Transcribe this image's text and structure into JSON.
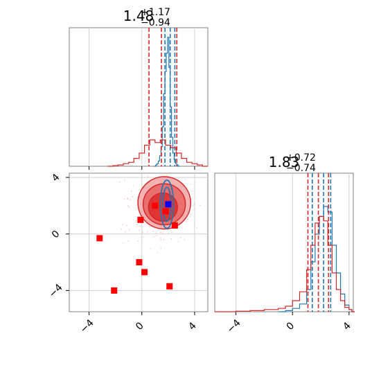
{
  "colors": {
    "red": "#d62728",
    "blue": "#1f77b4",
    "marker_red": "#ff0000",
    "marker_blue": "#0000ff",
    "grid": "#d0d0d0",
    "frame": "#808080"
  },
  "chart_data": [
    {
      "type": "histogram",
      "panel": "param1-marginal",
      "title": {
        "median": "1.48",
        "upper": "+1.17",
        "lower": "−0.94"
      },
      "xlim": [
        -5.5,
        5
      ],
      "grid": true,
      "xticks": [
        -4,
        0,
        4
      ],
      "series": [
        {
          "color": "#1f77b4",
          "bins_x": [
            1.0,
            1.1,
            1.2,
            1.3,
            1.4,
            1.5,
            1.6,
            1.7,
            1.8,
            1.9,
            2.0,
            2.1,
            2.2,
            2.3,
            2.4,
            2.5,
            2.6,
            2.7,
            2.8
          ],
          "heights": [
            0,
            0.01,
            0.02,
            0.04,
            0.08,
            0.15,
            0.3,
            0.55,
            0.72,
            0.86,
            0.98,
            0.75,
            0.45,
            0.22,
            0.1,
            0.05,
            0.02,
            0.01,
            0
          ],
          "quantile_lines": [
            1.75,
            2.15,
            2.5
          ]
        },
        {
          "color": "#d62728",
          "bins_x": [
            -2.4,
            -2.0,
            -1.6,
            -1.2,
            -0.8,
            -0.4,
            0,
            0.4,
            0.8,
            1.2,
            1.6,
            2.0,
            2.4,
            2.8,
            3.2,
            3.6,
            4.0,
            4.4,
            4.8
          ],
          "heights": [
            0,
            0.005,
            0.01,
            0.02,
            0.03,
            0.06,
            0.1,
            0.16,
            0.2,
            0.18,
            0.2,
            0.16,
            0.14,
            0.1,
            0.06,
            0.03,
            0.02,
            0.01,
            0
          ],
          "quantile_lines": [
            0.54,
            1.48,
            2.65
          ]
        }
      ]
    },
    {
      "type": "scatter",
      "panel": "param1-vs-param2",
      "xlim": [
        -5.5,
        5
      ],
      "ylim": [
        -5.5,
        4.3
      ],
      "xticks": [
        -4,
        0,
        4
      ],
      "yticks": [
        -4,
        0,
        4
      ],
      "grid": true,
      "red_square_points": [
        [
          -3.2,
          -0.3
        ],
        [
          -2.1,
          -4.0
        ],
        [
          -0.2,
          -2.0
        ],
        [
          0.2,
          -2.7
        ],
        [
          2.1,
          -3.7
        ],
        [
          1.0,
          2.0
        ],
        [
          -0.1,
          1.0
        ],
        [
          1.8,
          1.6
        ],
        [
          2.5,
          0.6
        ]
      ],
      "blue_square_points": [
        [
          2.0,
          2.1
        ]
      ],
      "red_contours": [
        {
          "cx": 1.7,
          "cy": 2.2,
          "rx": 2.0,
          "ry": 1.85,
          "level": "outer"
        },
        {
          "cx": 1.7,
          "cy": 2.1,
          "rx": 1.6,
          "ry": 1.45,
          "level": "middle"
        },
        {
          "cx": 1.6,
          "cy": 1.9,
          "rx": 1.1,
          "ry": 1.0,
          "level": "inner"
        }
      ],
      "blue_contours": [
        {
          "cx": 1.9,
          "cy": 2.1,
          "rx": 0.5,
          "ry": 1.7
        },
        {
          "cx": 1.9,
          "cy": 2.1,
          "rx": 0.3,
          "ry": 1.2
        }
      ]
    },
    {
      "type": "histogram",
      "panel": "param2-marginal",
      "title": {
        "median": "1.83",
        "upper": "+0.72",
        "lower": "−0.74"
      },
      "xlim": [
        -5.5,
        4.3
      ],
      "xticks": [
        -4,
        0,
        4
      ],
      "grid": true,
      "series": [
        {
          "color": "#1f77b4",
          "bins_x": [
            -1.0,
            -0.5,
            0,
            0.5,
            1.0,
            1.3,
            1.6,
            1.9,
            2.2,
            2.5,
            2.8,
            3.1,
            3.4,
            3.7,
            4.0,
            4.2
          ],
          "heights": [
            0,
            0.01,
            0.03,
            0.07,
            0.2,
            0.45,
            0.7,
            0.86,
            0.95,
            0.9,
            0.6,
            0.35,
            0.16,
            0.06,
            0.02,
            0
          ],
          "quantile_lines": [
            1.4,
            2.2,
            2.7
          ]
        },
        {
          "color": "#d62728",
          "bins_x": [
            -5.5,
            -4.0,
            -3.0,
            -2.0,
            -1.0,
            -0.5,
            0,
            0.5,
            1.0,
            1.3,
            1.6,
            1.9,
            2.2,
            2.5,
            2.8,
            3.1,
            3.4,
            3.7,
            4.0,
            4.2
          ],
          "heights": [
            0,
            0.005,
            0.01,
            0.02,
            0.03,
            0.05,
            0.1,
            0.18,
            0.38,
            0.6,
            0.8,
            0.86,
            0.82,
            0.6,
            0.35,
            0.2,
            0.1,
            0.04,
            0.02,
            0
          ],
          "quantile_lines": [
            1.09,
            1.83,
            2.55
          ]
        }
      ]
    }
  ]
}
